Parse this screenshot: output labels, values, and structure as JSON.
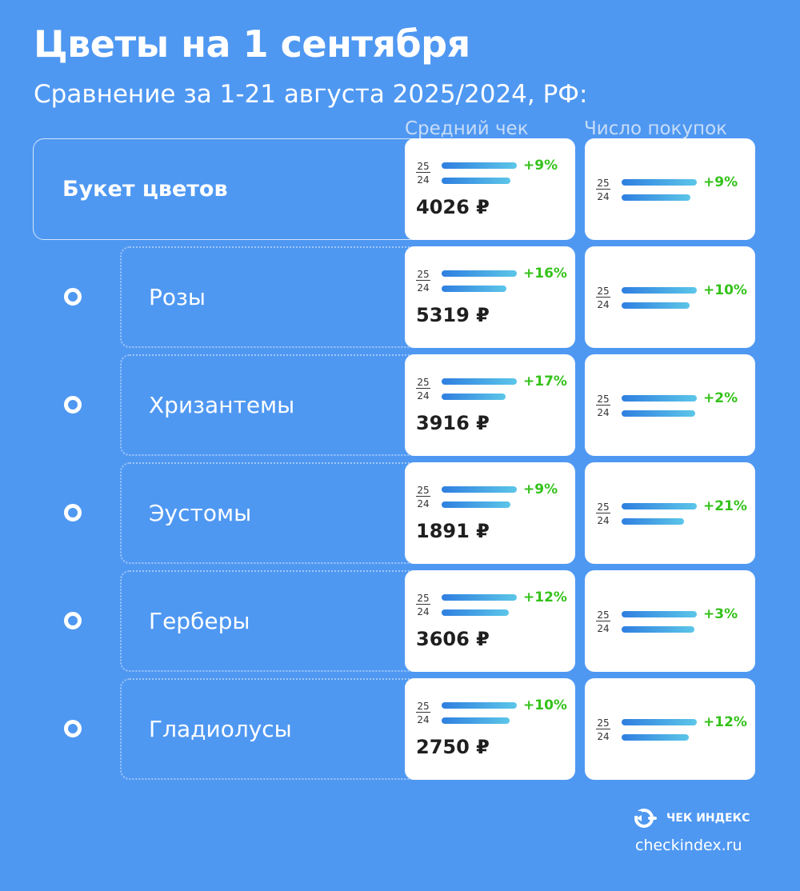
{
  "title": "Цветы на 1 сентября",
  "subtitle": "Сравнение за 1-21 августа 2025/2024, РФ:",
  "columns": {
    "avg_check": "Средний чек",
    "purchases": "Число покупок"
  },
  "year_labels": {
    "current": "25",
    "previous": "24"
  },
  "brand": {
    "name": "ЧЕК ИНДЕКС",
    "site": "checkindex.ru"
  },
  "colors": {
    "background": "#4f98f2",
    "bar_start": "#2f7fe0",
    "bar_end": "#5cc6e8",
    "growth": "#34c21a"
  },
  "chart_data": {
    "type": "bar",
    "title": "Цветы на 1 сентября",
    "subtitle": "Сравнение за 1-21 августа 2025/2024, РФ:",
    "categories": [
      "Букет цветов",
      "Розы",
      "Хризантемы",
      "Эустомы",
      "Герберы",
      "Гладиолусы"
    ],
    "series": [
      {
        "name": "Средний чек",
        "change": [
          "+9%",
          "+16%",
          "+17%",
          "+9%",
          "+12%",
          "+10%"
        ],
        "change_value": [
          9,
          16,
          17,
          9,
          12,
          10
        ],
        "value_2025": [
          "4026 ₽",
          "5319 ₽",
          "3916 ₽",
          "1891 ₽",
          "3606 ₽",
          "2750 ₽"
        ]
      },
      {
        "name": "Число покупок",
        "change": [
          "+9%",
          "+10%",
          "+2%",
          "+21%",
          "+3%",
          "+12%"
        ],
        "change_value": [
          9,
          10,
          2,
          21,
          3,
          12
        ]
      }
    ]
  }
}
